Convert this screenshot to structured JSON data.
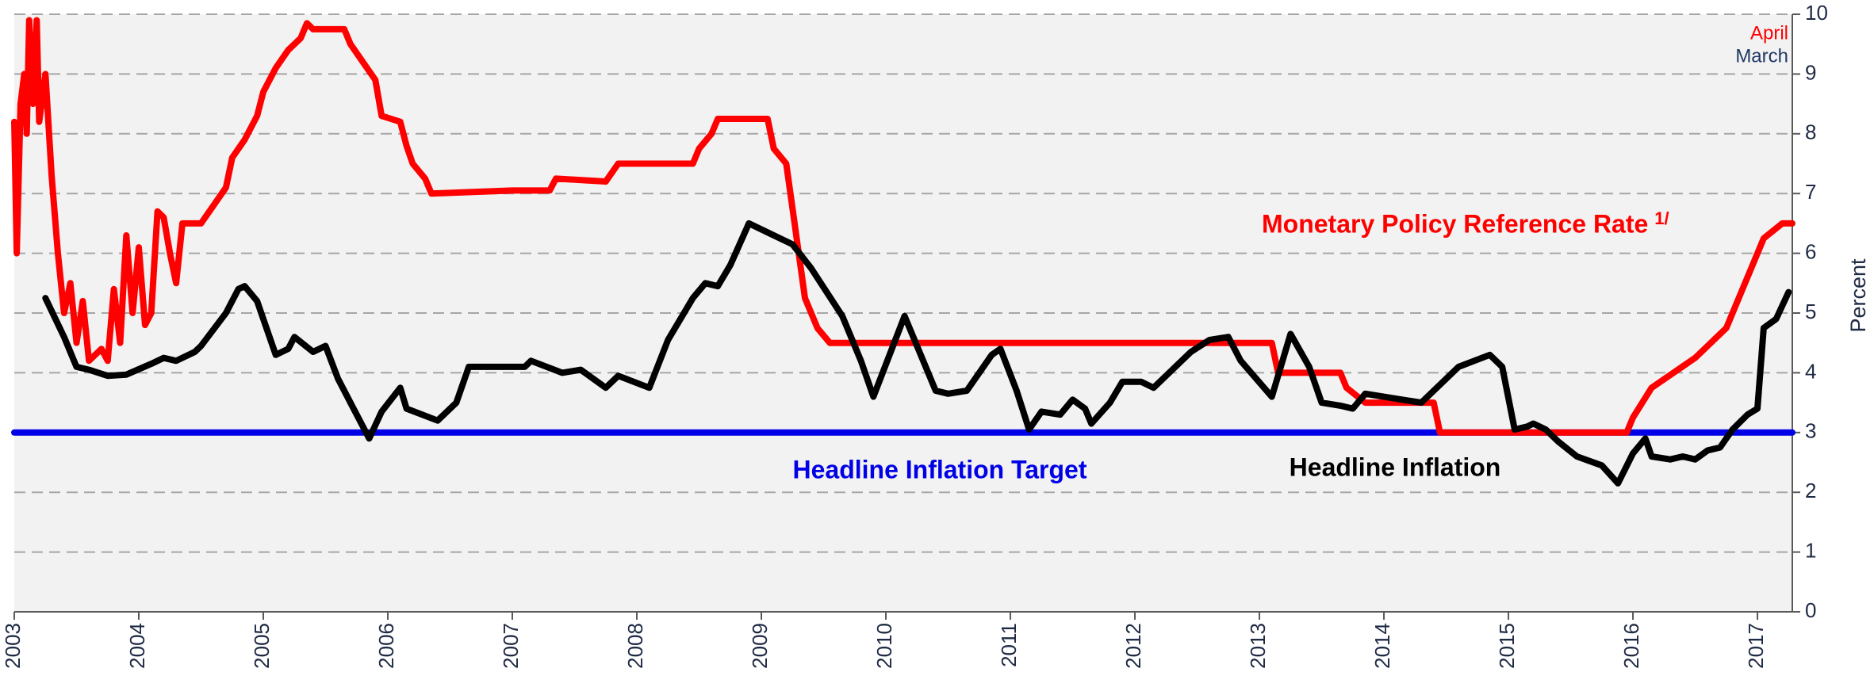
{
  "chart_data": {
    "type": "line",
    "y_axis_label": "Percent",
    "legend_notes": [
      {
        "text": "April",
        "color": "#ff0000"
      },
      {
        "text": "March",
        "color": "#1f3864"
      }
    ],
    "footnote_mark": "1/",
    "xlim": [
      2003,
      2017.28
    ],
    "xticks": [
      2003,
      2004,
      2005,
      2006,
      2007,
      2008,
      2009,
      2010,
      2011,
      2012,
      2013,
      2014,
      2015,
      2016,
      2017
    ],
    "ylim": [
      0,
      10
    ],
    "yticks": [
      0,
      1,
      2,
      3,
      4,
      5,
      6,
      7,
      8,
      9,
      10
    ],
    "grid": true,
    "series": [
      {
        "name": "Monetary Policy Reference Rate",
        "color": "#ff0000",
        "x": [
          2003.0,
          2003.02,
          2003.05,
          2003.08,
          2003.1,
          2003.12,
          2003.15,
          2003.18,
          2003.2,
          2003.25,
          2003.3,
          2003.35,
          2003.4,
          2003.45,
          2003.5,
          2003.55,
          2003.6,
          2003.7,
          2003.75,
          2003.8,
          2003.85,
          2003.9,
          2003.95,
          2004.0,
          2004.05,
          2004.1,
          2004.15,
          2004.2,
          2004.25,
          2004.3,
          2004.35,
          2004.5,
          2004.6,
          2004.7,
          2004.75,
          2004.85,
          2004.95,
          2005.0,
          2005.1,
          2005.2,
          2005.3,
          2005.35,
          2005.4,
          2005.65,
          2005.7,
          2005.8,
          2005.9,
          2005.95,
          2006.1,
          2006.15,
          2006.2,
          2006.3,
          2006.35,
          2007.0,
          2007.3,
          2007.35,
          2007.75,
          2007.85,
          2008.45,
          2008.5,
          2008.6,
          2008.65,
          2009.05,
          2009.1,
          2009.2,
          2009.25,
          2009.35,
          2009.45,
          2009.55,
          2013.1,
          2013.15,
          2013.65,
          2013.7,
          2013.85,
          2014.4,
          2014.45,
          2015.95,
          2016.0,
          2016.15,
          2016.5,
          2016.75,
          2016.85,
          2016.95,
          2017.05,
          2017.2,
          2017.28
        ],
        "values": [
          8.2,
          6.0,
          8.5,
          9.0,
          8.0,
          9.9,
          8.5,
          9.9,
          8.2,
          9.0,
          7.3,
          6.0,
          5.0,
          5.5,
          4.5,
          5.2,
          4.2,
          4.4,
          4.2,
          5.4,
          4.5,
          6.3,
          5.0,
          6.1,
          4.8,
          5.0,
          6.7,
          6.6,
          6.0,
          5.5,
          6.5,
          6.5,
          6.8,
          7.1,
          7.6,
          7.9,
          8.3,
          8.7,
          9.1,
          9.4,
          9.6,
          9.85,
          9.75,
          9.75,
          9.5,
          9.2,
          8.9,
          8.3,
          8.2,
          7.8,
          7.5,
          7.25,
          7.0,
          7.05,
          7.05,
          7.25,
          7.2,
          7.5,
          7.5,
          7.75,
          8.0,
          8.25,
          8.25,
          7.75,
          7.5,
          6.75,
          5.25,
          4.75,
          4.5,
          4.5,
          4.0,
          4.0,
          3.75,
          3.5,
          3.5,
          3.0,
          3.0,
          3.25,
          3.75,
          4.25,
          4.75,
          5.25,
          5.75,
          6.25,
          6.5,
          6.5
        ]
      },
      {
        "name": "Headline Inflation Target",
        "color": "#0000e6",
        "x": [
          2003,
          2017.28
        ],
        "values": [
          3,
          3
        ]
      },
      {
        "name": "Headline Inflation",
        "color": "#000000",
        "x": [
          2003.25,
          2003.4,
          2003.5,
          2003.6,
          2003.75,
          2003.9,
          2004.1,
          2004.2,
          2004.3,
          2004.45,
          2004.5,
          2004.7,
          2004.8,
          2004.85,
          2004.95,
          2005.1,
          2005.2,
          2005.25,
          2005.4,
          2005.5,
          2005.6,
          2005.7,
          2005.85,
          2005.95,
          2006.1,
          2006.15,
          2006.4,
          2006.55,
          2006.65,
          2006.8,
          2007.1,
          2007.15,
          2007.4,
          2007.55,
          2007.75,
          2007.85,
          2008.1,
          2008.25,
          2008.45,
          2008.55,
          2008.65,
          2008.75,
          2008.9,
          2009.1,
          2009.25,
          2009.4,
          2009.65,
          2009.8,
          2009.9,
          2010.15,
          2010.4,
          2010.5,
          2010.65,
          2010.85,
          2010.92,
          2011.05,
          2011.15,
          2011.25,
          2011.4,
          2011.5,
          2011.6,
          2011.65,
          2011.8,
          2011.9,
          2012.05,
          2012.15,
          2012.45,
          2012.6,
          2012.75,
          2012.85,
          2013.1,
          2013.25,
          2013.4,
          2013.5,
          2013.65,
          2013.75,
          2013.85,
          2014.3,
          2014.6,
          2014.85,
          2014.95,
          2015.05,
          2015.15,
          2015.2,
          2015.3,
          2015.4,
          2015.55,
          2015.75,
          2015.88,
          2016.0,
          2016.1,
          2016.15,
          2016.3,
          2016.4,
          2016.5,
          2016.6,
          2016.7,
          2016.8,
          2016.92,
          2017.0,
          2017.05,
          2017.15,
          2017.25
        ],
        "values": [
          5.25,
          4.6,
          4.1,
          4.05,
          3.95,
          3.97,
          4.15,
          4.25,
          4.2,
          4.35,
          4.45,
          5.0,
          5.4,
          5.45,
          5.2,
          4.3,
          4.4,
          4.6,
          4.35,
          4.45,
          3.9,
          3.5,
          2.9,
          3.35,
          3.75,
          3.4,
          3.2,
          3.5,
          4.1,
          4.1,
          4.1,
          4.2,
          4.0,
          4.05,
          3.75,
          3.95,
          3.75,
          4.55,
          5.25,
          5.5,
          5.45,
          5.8,
          6.5,
          6.3,
          6.15,
          5.75,
          4.95,
          4.2,
          3.6,
          4.95,
          3.7,
          3.65,
          3.7,
          4.3,
          4.4,
          3.7,
          3.05,
          3.35,
          3.3,
          3.55,
          3.4,
          3.15,
          3.5,
          3.85,
          3.85,
          3.75,
          4.35,
          4.55,
          4.6,
          4.2,
          3.6,
          4.65,
          4.1,
          3.5,
          3.45,
          3.4,
          3.65,
          3.5,
          4.1,
          4.3,
          4.1,
          3.05,
          3.1,
          3.15,
          3.05,
          2.85,
          2.6,
          2.45,
          2.15,
          2.65,
          2.9,
          2.6,
          2.55,
          2.6,
          2.55,
          2.7,
          2.75,
          3.05,
          3.3,
          3.4,
          4.75,
          4.9,
          5.35
        ]
      }
    ]
  }
}
